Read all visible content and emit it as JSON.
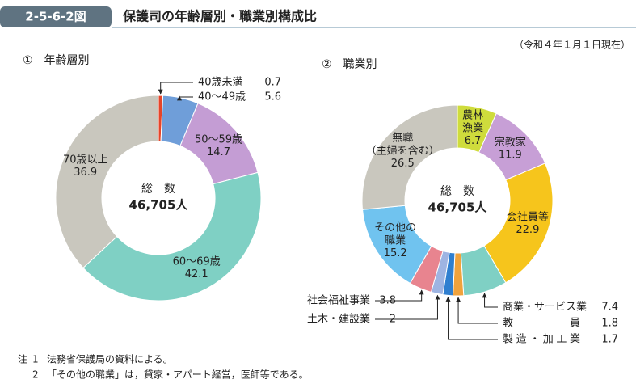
{
  "header": {
    "badge": "2-5-6-2図",
    "title": "保護司の年齢層別・職業別構成比",
    "date_note": "（令和４年１月１日現在）"
  },
  "chart_data": [
    {
      "type": "pie",
      "title": "①　年齢層別",
      "center_label": "総　数",
      "center_total": "46,705人",
      "categories": [
        "40歳未満",
        "40～49歳",
        "50～59歳",
        "60～69歳",
        "70歳以上"
      ],
      "values": [
        0.7,
        5.6,
        14.7,
        42.1,
        36.9
      ],
      "colors": [
        "#e5452a",
        "#6f9ed9",
        "#c49dd4",
        "#7fd0c4",
        "#c9c7be"
      ]
    },
    {
      "type": "pie",
      "title": "②　職業別",
      "center_label": "総　数",
      "center_total": "46,705人",
      "categories": [
        "農林漁業",
        "宗教家",
        "会社員等",
        "商業・サービス業",
        "教員",
        "製造・加工業",
        "土木・建設業",
        "社会福祉事業",
        "その他の職業",
        "無職（主婦を含む）"
      ],
      "values": [
        6.7,
        11.9,
        22.9,
        7.4,
        1.8,
        1.7,
        2.0,
        3.8,
        15.2,
        26.5
      ],
      "colors": [
        "#cfdc3c",
        "#c79fd6",
        "#f6c51c",
        "#7fd0c4",
        "#f0a23c",
        "#2f7fd0",
        "#9eb4e2",
        "#e8848f",
        "#70c3ef",
        "#c9c7be"
      ]
    }
  ],
  "notes": {
    "label": "注",
    "items": [
      {
        "no": "1",
        "text": "法務省保護局の資料による。"
      },
      {
        "no": "2",
        "text": "「その他の職業」は，貸家・アパート経営，医師等である。"
      }
    ]
  }
}
